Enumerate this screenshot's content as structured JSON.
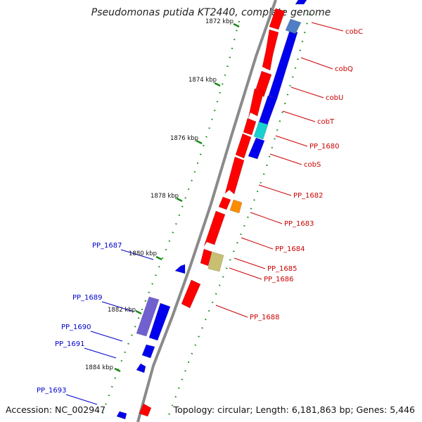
{
  "title": "Pseudomonas putida KT2440, complete genome",
  "footer": {
    "accession": "Accession: NC_002947",
    "summary": "Topology: circular; Length: 6,181,863 bp; Genes: 5,446"
  },
  "colors": {
    "backbone": "#8a8a8a",
    "tick": "#1a8a1a",
    "forward_gene": "#ff0000",
    "reverse_gene": "#0000ee",
    "cyan_gene": "#19d0d0",
    "light_blue_gene": "#4f7fc4",
    "orange_gene": "#ff8c00",
    "khaki_gene": "#c8c070",
    "purple_gene": "#7060d0",
    "right_label": "#cc0000",
    "left_label": "#0000cc"
  },
  "ticks": [
    {
      "label": "1872 kbp",
      "position": 1872
    },
    {
      "label": "1874 kbp",
      "position": 1874
    },
    {
      "label": "1876 kbp",
      "position": 1876
    },
    {
      "label": "1878 kbp",
      "position": 1878
    },
    {
      "label": "1880 kbp",
      "position": 1880
    },
    {
      "label": "1882 kbp",
      "position": 1882
    },
    {
      "label": "1884 kbp",
      "position": 1884
    }
  ],
  "right_labels": [
    "cobC",
    "cobQ",
    "cobU",
    "cobT",
    "PP_1680",
    "cobS",
    "PP_1682",
    "PP_1683",
    "PP_1684",
    "PP_1685",
    "PP_1686",
    "PP_1688"
  ],
  "left_labels": [
    "PP_1687",
    "PP_1689",
    "PP_1690",
    "PP_1691",
    "PP_1693"
  ]
}
